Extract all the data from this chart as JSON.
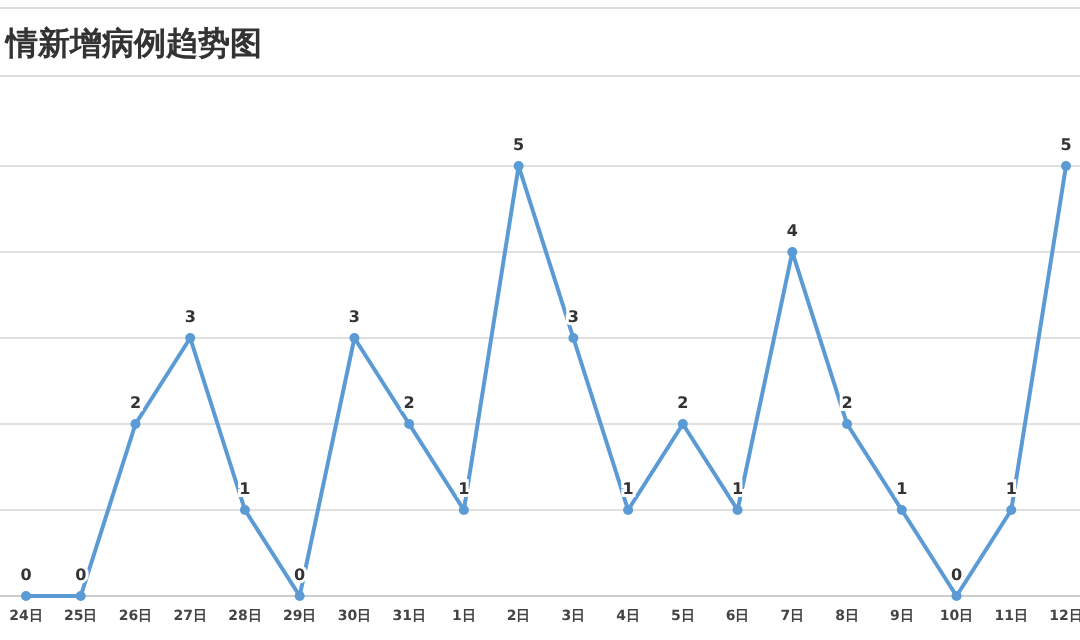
{
  "chart_data": {
    "type": "line",
    "title": "情新增病例趋势图",
    "categories": [
      "24日",
      "25日",
      "26日",
      "27日",
      "28日",
      "29日",
      "30日",
      "31日",
      "1日",
      "2日",
      "3日",
      "4日",
      "5日",
      "6日",
      "7日",
      "8日",
      "9日",
      "10日",
      "11日",
      "12日"
    ],
    "series": [
      {
        "color": "#5b9bd5",
        "values": [
          0,
          0,
          2,
          3,
          1,
          0,
          3,
          2,
          1,
          5,
          3,
          1,
          2,
          1,
          4,
          2,
          1,
          0,
          1,
          5
        ]
      }
    ],
    "ylim": [
      0,
      5
    ],
    "yticks": [
      {
        "value": 0,
        "label": null
      },
      {
        "value": 1,
        "label": null
      },
      {
        "value": 2,
        "label": null
      },
      {
        "value": 3,
        "label": null
      },
      {
        "value": 4,
        "label": null
      },
      {
        "value": 5,
        "label": null
      }
    ],
    "grid": "y",
    "marker": "circle",
    "line_style": "solid",
    "data_labels": true,
    "tick_labels": "x"
  }
}
